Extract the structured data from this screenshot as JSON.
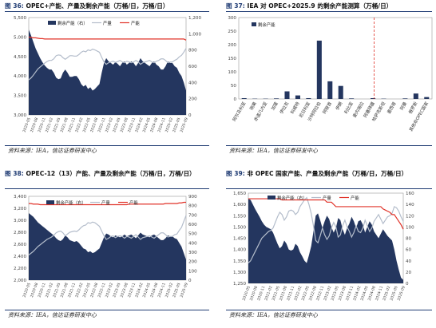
{
  "panels": [
    {
      "figure_label": "图 36:",
      "title": "OPEC+产能、产量及剩余产能（万桶/日，万桶/日）",
      "source": "资料来源：IEA，信达证券研发中心"
    },
    {
      "figure_label": "图 37:",
      "title": "IEA 对 OPEC+2025.9 的剩余产能测算（万桶/日）",
      "source": "资料来源：IEA，信达证券研发中心"
    },
    {
      "figure_label": "图 38:",
      "title": "OPEC-12（13）产能、产量及剩余产能（万桶/日，万桶/日）",
      "source": "资料来源：IEA，信达证券研发中心"
    },
    {
      "figure_label": "图 39:",
      "title": "非 OPEC 国家产能、产量及剩余产能（万桶/日，万桶/日）",
      "source": "资料来源：IEA，信达证券研发中心"
    }
  ],
  "chart_data": [
    {
      "type": "area",
      "legend": [
        "剩余产能（右）",
        "产量",
        "产能"
      ],
      "colors": {
        "spare": "#24365f",
        "production": "#b4bdcb",
        "capacity": "#e03127"
      },
      "ylim_left": [
        3000,
        5500
      ],
      "yticks_left": [
        "3,000",
        "3,500",
        "4,000",
        "4,500",
        "5,000",
        "5,500"
      ],
      "ylim_right": [
        0,
        1200
      ],
      "yticks_right": [
        "0",
        "200",
        "400",
        "600",
        "800",
        "1,000",
        "1,200"
      ],
      "x_ticks": [
        "2020-05",
        "2020-08",
        "2020-11",
        "2021-02",
        "2021-05",
        "2021-08",
        "2021-11",
        "2022-02",
        "2022-05",
        "2022-08",
        "2022-11",
        "2023-02",
        "2023-05",
        "2023-08",
        "2023-11",
        "2024-02",
        "2024-05",
        "2024-08",
        "2024-11",
        "2025-02",
        "2025-05",
        "2025-09"
      ],
      "series": [
        {
          "name": "剩余产能（右）",
          "axis": "right",
          "values": [
            1050,
            980,
            900,
            820,
            760,
            700,
            650,
            610,
            580,
            560,
            560,
            520,
            460,
            440,
            450,
            520,
            560,
            520,
            470,
            470,
            480,
            480,
            440,
            380,
            350,
            370,
            320,
            340,
            300,
            320,
            350,
            380,
            520,
            640,
            700,
            660,
            640,
            620,
            650,
            630,
            600,
            640,
            660,
            620,
            640,
            660,
            640,
            600,
            640,
            700,
            660,
            640,
            620,
            600,
            640,
            660,
            620,
            600,
            560,
            560,
            600,
            660,
            640,
            640,
            600,
            580,
            520,
            480,
            400,
            300
          ]
        },
        {
          "name": "产量",
          "axis": "left",
          "values": [
            3900,
            3950,
            4020,
            4100,
            4180,
            4230,
            4280,
            4330,
            4370,
            4400,
            4400,
            4440,
            4520,
            4540,
            4530,
            4470,
            4430,
            4470,
            4520,
            4520,
            4510,
            4510,
            4550,
            4610,
            4640,
            4620,
            4670,
            4650,
            4690,
            4670,
            4640,
            4610,
            4480,
            4360,
            4300,
            4340,
            4360,
            4380,
            4350,
            4370,
            4400,
            4360,
            4340,
            4380,
            4360,
            4340,
            4360,
            4400,
            4360,
            4300,
            4340,
            4360,
            4380,
            4400,
            4360,
            4340,
            4380,
            4400,
            4440,
            4440,
            4400,
            4340,
            4360,
            4360,
            4400,
            4430,
            4490,
            4530,
            4610,
            4710
          ]
        },
        {
          "name": "产能",
          "axis": "left",
          "values": [
            5000,
            4990,
            4980,
            4980,
            4970,
            4960,
            4960,
            4950,
            4950,
            4950,
            4950,
            4950,
            4950,
            4950,
            4950,
            4950,
            4950,
            4950,
            4950,
            4950,
            4950,
            4950,
            4950,
            4950,
            4950,
            4950,
            4950,
            4950,
            4950,
            4950,
            4950,
            4950,
            4950,
            4950,
            4950,
            4950,
            4950,
            4950,
            4950,
            4950,
            4950,
            4950,
            4950,
            4950,
            4950,
            4950,
            4950,
            4950,
            4950,
            4950,
            4950,
            4950,
            4950,
            4950,
            4950,
            4950,
            4950,
            4950,
            4950,
            4950,
            4950,
            4950,
            4950,
            4950,
            4950,
            4950,
            4950,
            4950,
            4950,
            4920
          ]
        }
      ]
    },
    {
      "type": "bar",
      "legend": [
        "剩余产能"
      ],
      "bar_color": "#24365f",
      "divider_color": "#e03127",
      "ylim": [
        0,
        300
      ],
      "yticks": [
        "0",
        "50",
        "100",
        "150",
        "200",
        "250",
        "300"
      ],
      "categories": [
        "阿尔及利亚",
        "刚果",
        "赤道几内亚",
        "加蓬",
        "伊拉克",
        "科威特",
        "尼日利亚",
        "沙特阿拉伯",
        "阿联酋",
        "伊朗",
        "利比亚",
        "委内瑞拉",
        "阿塞拜疆",
        "哈萨克斯坦",
        "墨西哥",
        "阿曼",
        "俄罗斯",
        "其他非OPEC国家"
      ],
      "values": [
        3,
        1,
        1,
        2,
        28,
        13,
        3,
        215,
        65,
        48,
        2,
        0,
        3,
        1,
        0,
        2,
        20,
        7
      ],
      "divider_after_index": 11
    },
    {
      "type": "area",
      "legend": [
        "剩余产能（右）",
        "产量",
        "产能"
      ],
      "colors": {
        "spare": "#24365f",
        "production": "#b4bdcb",
        "capacity": "#e03127"
      },
      "ylim_left": [
        2000,
        3400
      ],
      "yticks_left": [
        "2,000",
        "2,200",
        "2,400",
        "2,600",
        "2,800",
        "3,000",
        "3,200",
        "3,400"
      ],
      "ylim_right": [
        0,
        900
      ],
      "yticks_right": [
        "0",
        "100",
        "200",
        "300",
        "400",
        "500",
        "600",
        "700",
        "800",
        "900"
      ],
      "x_ticks": [
        "2020-05",
        "2020-08",
        "2020-11",
        "2021-02",
        "2021-05",
        "2021-08",
        "2021-11",
        "2022-02",
        "2022-05",
        "2022-08",
        "2022-11",
        "2023-02",
        "2023-05",
        "2023-08",
        "2023-11",
        "2024-02",
        "2024-05",
        "2024-08",
        "2024-11",
        "2025-02",
        "2025-05",
        "2025-09"
      ],
      "series": [
        {
          "name": "剩余产能（右）",
          "axis": "right",
          "values": [
            720,
            700,
            680,
            650,
            620,
            600,
            580,
            560,
            540,
            520,
            500,
            480,
            450,
            430,
            420,
            440,
            480,
            460,
            430,
            420,
            410,
            420,
            400,
            370,
            340,
            330,
            300,
            310,
            290,
            300,
            320,
            340,
            400,
            460,
            500,
            490,
            470,
            460,
            480,
            470,
            460,
            470,
            490,
            470,
            480,
            490,
            470,
            450,
            480,
            510,
            490,
            480,
            470,
            460,
            480,
            490,
            470,
            450,
            430,
            430,
            450,
            480,
            470,
            470,
            450,
            440,
            400,
            360,
            290,
            220
          ]
        },
        {
          "name": "产量",
          "axis": "left",
          "values": [
            2420,
            2450,
            2480,
            2520,
            2560,
            2590,
            2620,
            2650,
            2680,
            2700,
            2720,
            2750,
            2790,
            2810,
            2820,
            2790,
            2740,
            2770,
            2800,
            2810,
            2820,
            2810,
            2840,
            2880,
            2910,
            2920,
            2960,
            2950,
            2970,
            2960,
            2930,
            2900,
            2820,
            2740,
            2680,
            2700,
            2730,
            2740,
            2710,
            2730,
            2740,
            2730,
            2700,
            2730,
            2720,
            2700,
            2730,
            2760,
            2720,
            2680,
            2710,
            2720,
            2730,
            2740,
            2720,
            2700,
            2730,
            2760,
            2790,
            2790,
            2760,
            2720,
            2730,
            2730,
            2760,
            2770,
            2830,
            2880,
            2980,
            3080
          ]
        },
        {
          "name": "产能",
          "axis": "left",
          "values": [
            3280,
            3280,
            3270,
            3270,
            3270,
            3260,
            3260,
            3260,
            3260,
            3260,
            3260,
            3260,
            3260,
            3260,
            3260,
            3260,
            3260,
            3260,
            3260,
            3260,
            3260,
            3260,
            3260,
            3260,
            3260,
            3260,
            3260,
            3260,
            3260,
            3260,
            3260,
            3260,
            3260,
            3260,
            3260,
            3260,
            3260,
            3260,
            3260,
            3260,
            3260,
            3260,
            3260,
            3260,
            3270,
            3270,
            3270,
            3270,
            3270,
            3270,
            3270,
            3270,
            3270,
            3270,
            3270,
            3270,
            3270,
            3270,
            3270,
            3270,
            3280,
            3280,
            3280,
            3280,
            3280,
            3280,
            3290,
            3290,
            3300,
            3300
          ]
        }
      ]
    },
    {
      "type": "area",
      "legend": [
        "剩余产能（右）",
        "产量",
        "产能"
      ],
      "colors": {
        "spare": "#24365f",
        "production": "#b4bdcb",
        "capacity": "#e03127"
      },
      "ylim_left": [
        1250,
        1650
      ],
      "yticks_left": [
        "1,250",
        "1,300",
        "1,350",
        "1,400",
        "1,450",
        "1,500",
        "1,550",
        "1,600",
        "1,650"
      ],
      "ylim_right": [
        0,
        160
      ],
      "yticks_right": [
        "0",
        "20",
        "40",
        "60",
        "80",
        "100",
        "120",
        "140",
        "160"
      ],
      "x_ticks": [
        "2020-05",
        "2020-08",
        "2020-11",
        "2021-02",
        "2021-05",
        "2021-08",
        "2021-11",
        "2022-02",
        "2022-05",
        "2022-08",
        "2022-11",
        "2023-02",
        "2023-05",
        "2023-08",
        "2023-11",
        "2024-02",
        "2024-05",
        "2024-08",
        "2024-11",
        "2025-02",
        "2025-05",
        "2025-09"
      ],
      "series": [
        {
          "name": "剩余产能（右）",
          "axis": "right",
          "values": [
            150,
            148,
            140,
            132,
            125,
            118,
            110,
            104,
            100,
            98,
            96,
            90,
            80,
            70,
            62,
            66,
            76,
            70,
            60,
            58,
            60,
            70,
            66,
            55,
            48,
            40,
            36,
            50,
            66,
            92,
            120,
            124,
            112,
            98,
            110,
            120,
            114,
            100,
            90,
            98,
            116,
            112,
            96,
            86,
            98,
            106,
            118,
            110,
            98,
            110,
            112,
            104,
            90,
            100,
            110,
            104,
            92,
            86,
            80,
            88,
            96,
            90,
            84,
            80,
            76,
            60,
            40,
            24,
            10,
            6
          ]
        },
        {
          "name": "产量",
          "axis": "left",
          "values": [
            1340,
            1350,
            1370,
            1390,
            1410,
            1430,
            1450,
            1460,
            1470,
            1480,
            1485,
            1495,
            1520,
            1545,
            1565,
            1555,
            1530,
            1545,
            1570,
            1575,
            1570,
            1555,
            1565,
            1590,
            1605,
            1620,
            1630,
            1600,
            1560,
            1505,
            1440,
            1430,
            1460,
            1495,
            1465,
            1445,
            1460,
            1495,
            1520,
            1500,
            1455,
            1465,
            1505,
            1530,
            1500,
            1480,
            1455,
            1475,
            1505,
            1480,
            1475,
            1495,
            1530,
            1505,
            1480,
            1495,
            1525,
            1540,
            1555,
            1535,
            1515,
            1530,
            1545,
            1550,
            1560,
            1590,
            1585,
            1570,
            1545,
            1525
          ]
        },
        {
          "name": "产能",
          "axis": "left",
          "values": [
            1625,
            1625,
            1625,
            1625,
            1625,
            1625,
            1625,
            1625,
            1625,
            1625,
            1625,
            1625,
            1625,
            1625,
            1625,
            1620,
            1620,
            1620,
            1620,
            1620,
            1620,
            1620,
            1620,
            1620,
            1620,
            1620,
            1620,
            1620,
            1620,
            1620,
            1620,
            1620,
            1620,
            1620,
            1620,
            1610,
            1610,
            1610,
            1600,
            1590,
            1590,
            1590,
            1590,
            1590,
            1590,
            1590,
            1590,
            1590,
            1590,
            1590,
            1590,
            1590,
            1590,
            1590,
            1590,
            1590,
            1590,
            1590,
            1590,
            1590,
            1580,
            1575,
            1570,
            1565,
            1555,
            1555,
            1540,
            1525,
            1510,
            1490
          ]
        }
      ]
    }
  ]
}
